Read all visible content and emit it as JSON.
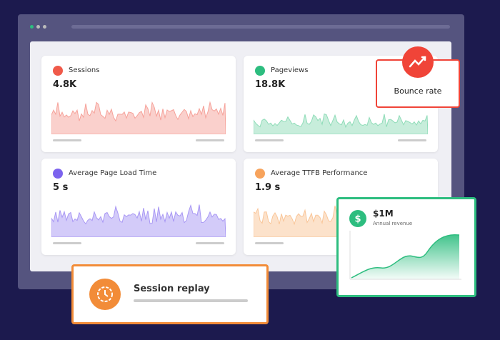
{
  "cards": [
    {
      "title": "Sessions",
      "value": "4.8K"
    },
    {
      "title": "Pageviews",
      "value": "18.8K"
    },
    {
      "title": "Average Page Load Time",
      "value": "5 s"
    },
    {
      "title": "Average TTFB Performance",
      "value": "1.9 s"
    }
  ],
  "bounce": {
    "label": "Bounce rate"
  },
  "revenue": {
    "value": "$1M",
    "label": "Annual revenue"
  },
  "replay": {
    "title": "Session replay"
  }
}
